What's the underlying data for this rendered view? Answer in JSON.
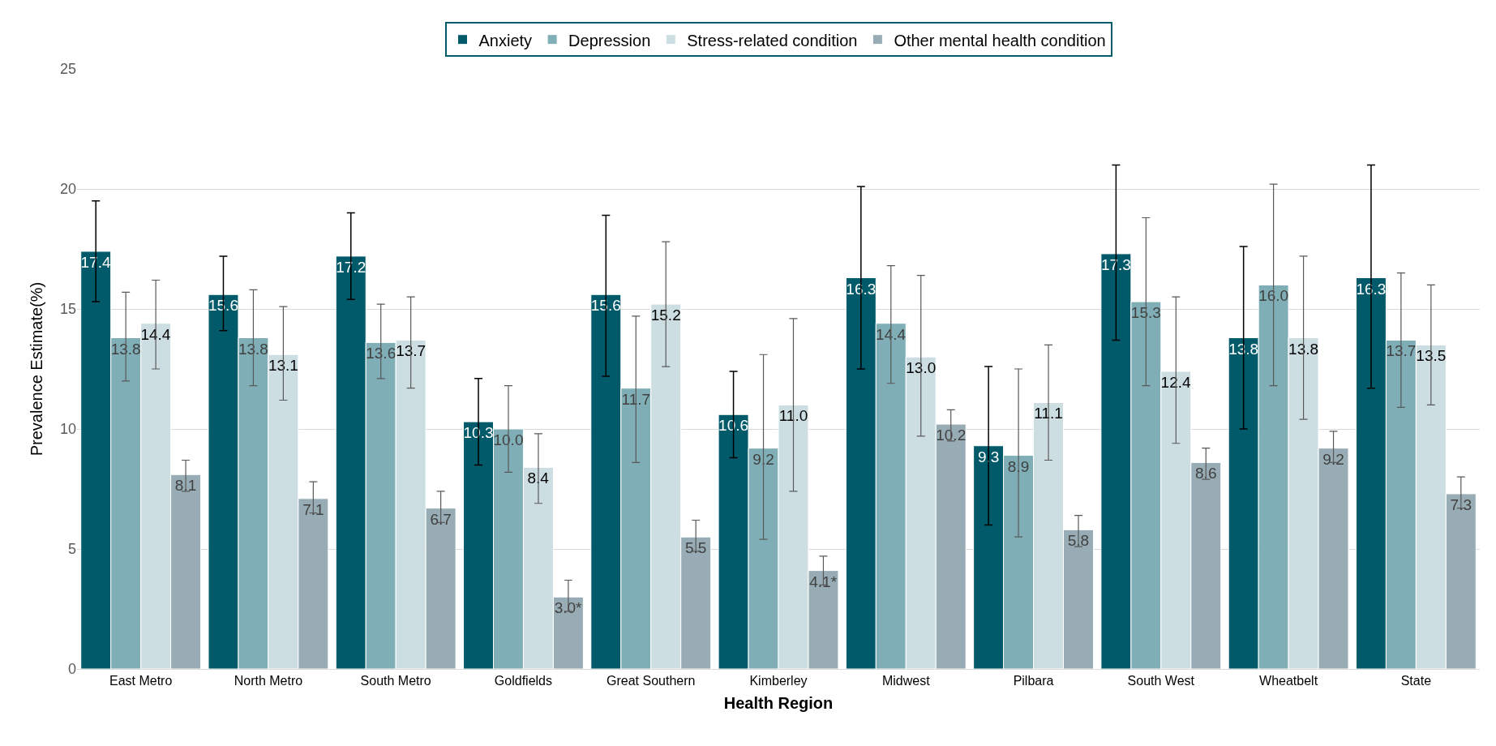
{
  "chart_data": {
    "type": "bar",
    "xlabel": "Health Region",
    "ylabel": "Prevalence Estimate(%)",
    "categories": [
      "East Metro",
      "North Metro",
      "South Metro",
      "Goldfields",
      "Great Southern",
      "Kimberley",
      "Midwest",
      "Pilbara",
      "South West",
      "Wheatbelt",
      "State"
    ],
    "ylim": [
      0,
      25
    ],
    "yticks": [
      0,
      5,
      10,
      15,
      20,
      25
    ],
    "grid": "y",
    "legend": "top",
    "series": [
      {
        "name": "Anxiety",
        "color": "#005a6a",
        "values": [
          17.4,
          15.6,
          17.2,
          10.3,
          15.6,
          10.6,
          16.3,
          9.3,
          17.3,
          13.8,
          16.3
        ],
        "errors": [
          [
            15.3,
            19.5
          ],
          [
            14.1,
            17.2
          ],
          [
            15.4,
            19.0
          ],
          [
            8.5,
            12.1
          ],
          [
            12.2,
            18.9
          ],
          [
            8.8,
            12.4
          ],
          [
            12.5,
            20.1
          ],
          [
            6.0,
            12.6
          ],
          [
            13.7,
            21.0
          ],
          [
            10.0,
            17.6
          ],
          [
            11.7,
            21.0
          ]
        ],
        "value_labels": [
          "17.4",
          "15.6",
          "17.2",
          "10.3",
          "15.6",
          "10.6",
          "16.3",
          "9.3",
          "17.3",
          "13.8",
          "16.3"
        ]
      },
      {
        "name": "Depression",
        "color": "#7faeb6",
        "values": [
          13.8,
          13.8,
          13.6,
          10.0,
          11.7,
          9.2,
          14.4,
          8.9,
          15.3,
          16.0,
          13.7
        ],
        "errors": [
          [
            12.0,
            15.7
          ],
          [
            11.8,
            15.8
          ],
          [
            12.1,
            15.2
          ],
          [
            8.2,
            11.8
          ],
          [
            8.6,
            14.7
          ],
          [
            5.4,
            13.1
          ],
          [
            11.9,
            16.8
          ],
          [
            5.5,
            12.5
          ],
          [
            11.8,
            18.8
          ],
          [
            11.8,
            20.2
          ],
          [
            10.9,
            16.5
          ]
        ],
        "value_labels": [
          "13.8",
          "13.8",
          "13.6",
          "10.0",
          "11.7",
          "9.2",
          "14.4",
          "8.9",
          "15.3",
          "16.0",
          "13.7"
        ]
      },
      {
        "name": "Stress-related condition",
        "color": "#cddee2",
        "values": [
          14.4,
          13.1,
          13.7,
          8.4,
          15.2,
          11.0,
          13.0,
          11.1,
          12.4,
          13.8,
          13.5
        ],
        "errors": [
          [
            12.5,
            16.2
          ],
          [
            11.2,
            15.1
          ],
          [
            11.7,
            15.5
          ],
          [
            6.9,
            9.8
          ],
          [
            12.6,
            17.8
          ],
          [
            7.4,
            14.6
          ],
          [
            9.7,
            16.4
          ],
          [
            8.7,
            13.5
          ],
          [
            9.4,
            15.5
          ],
          [
            10.4,
            17.2
          ],
          [
            11.0,
            16.0
          ]
        ],
        "value_labels": [
          "14.4",
          "13.1",
          "13.7",
          "8.4",
          "15.2",
          "11.0",
          "13.0",
          "11.1",
          "12.4",
          "13.8",
          "13.5"
        ]
      },
      {
        "name": "Other mental health condition",
        "color": "#97acb4",
        "values": [
          8.1,
          7.1,
          6.7,
          3.0,
          5.5,
          4.1,
          10.2,
          5.8,
          8.6,
          9.2,
          7.3
        ],
        "errors": [
          [
            7.4,
            8.7
          ],
          [
            6.5,
            7.8
          ],
          [
            6.1,
            7.4
          ],
          [
            2.4,
            3.7
          ],
          [
            4.9,
            6.2
          ],
          [
            3.5,
            4.7
          ],
          [
            9.5,
            10.8
          ],
          [
            5.1,
            6.4
          ],
          [
            7.9,
            9.2
          ],
          [
            8.6,
            9.9
          ],
          [
            6.7,
            8.0
          ]
        ],
        "value_labels": [
          "8.1",
          "7.1",
          "6.7",
          "3.0*",
          "5.5",
          "4.1*",
          "10.2",
          "5.8",
          "8.6",
          "9.2",
          "7.3"
        ]
      }
    ]
  }
}
